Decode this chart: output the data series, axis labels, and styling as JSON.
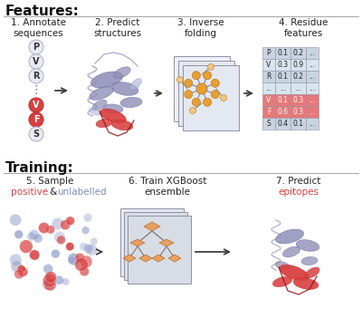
{
  "bg_color": "#ffffff",
  "features_label": "Features:",
  "training_label": "Training:",
  "step1_title": "1. Annotate\nsequences",
  "step2_title": "2. Predict\nstructures",
  "step3_title": "3. Inverse\nfolding",
  "step4_title": "4. Residue\nfeatures",
  "step5_title": "5. Sample",
  "step5_positive": "positive",
  "step5_and": " & ",
  "step5_unlabelled": "unlabelled",
  "step6_title": "6. Train XGBoost\nensemble",
  "step7_title": "7. Predict",
  "step7_epitopes": "epitopes",
  "seq_labels": [
    "P",
    "V",
    "R",
    ":",
    "V",
    "F",
    "S"
  ],
  "seq_highlight": [
    false,
    false,
    false,
    false,
    true,
    true,
    false
  ],
  "table_rows": [
    "P",
    "V",
    "R",
    "...",
    "V",
    "F",
    "S"
  ],
  "table_vals": [
    [
      "0.1",
      "0.2",
      "..."
    ],
    [
      "0.3",
      "0.9",
      "..."
    ],
    [
      "0.1",
      "0.2",
      "..."
    ],
    [
      "...",
      "...",
      "..."
    ],
    [
      "0.1",
      "0.3",
      "..."
    ],
    [
      "0.6",
      "0.3",
      "..."
    ],
    [
      "0.4",
      "0.1",
      "..."
    ]
  ],
  "table_highlight": [
    false,
    false,
    false,
    false,
    true,
    true,
    false
  ],
  "color_red": "#d94040",
  "color_red2": "#c03030",
  "color_blue": "#7b8cc0",
  "color_blue_link": "#6688bb",
  "color_orange": "#e8a030",
  "color_orange_edge": "#c07820",
  "color_orange_light": "#f0c880",
  "color_gray_blue": "#9090b8",
  "color_gray_blue_edge": "#6868a0",
  "color_table_highlight": "#e87878",
  "color_table_normal": "#c8d4e0",
  "color_table_normal2": "#d8e4ee",
  "color_table_border": "#9090a8",
  "arrow_color": "#404040",
  "section_label_fontsize": 11,
  "step_title_fontsize": 7.5,
  "seq_fontsize": 7,
  "table_fontsize": 5.5
}
